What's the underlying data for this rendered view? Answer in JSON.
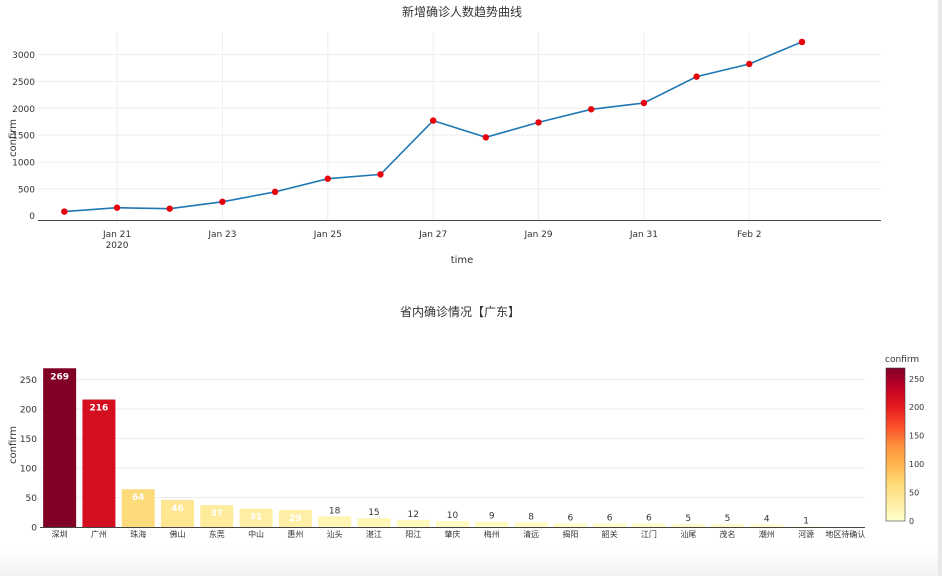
{
  "chart_data": [
    {
      "type": "line",
      "title": "新增确诊人数趋势曲线",
      "xlabel": "time",
      "ylabel": "confirm",
      "x": [
        "2020-01-20",
        "2020-01-21",
        "2020-01-22",
        "2020-01-23",
        "2020-01-24",
        "2020-01-25",
        "2020-01-26",
        "2020-01-27",
        "2020-01-28",
        "2020-01-29",
        "2020-01-30",
        "2020-01-31",
        "2020-02-01",
        "2020-02-02",
        "2020-02-03"
      ],
      "values": [
        77,
        149,
        131,
        259,
        444,
        688,
        769,
        1771,
        1459,
        1737,
        1981,
        2099,
        2589,
        2825,
        3235
      ],
      "xticks": [
        {
          "date": "2020-01-21",
          "label": "Jan 21",
          "sub": "2020"
        },
        {
          "date": "2020-01-23",
          "label": "Jan 23",
          "sub": ""
        },
        {
          "date": "2020-01-25",
          "label": "Jan 25",
          "sub": ""
        },
        {
          "date": "2020-01-27",
          "label": "Jan 27",
          "sub": ""
        },
        {
          "date": "2020-01-29",
          "label": "Jan 29",
          "sub": ""
        },
        {
          "date": "2020-01-31",
          "label": "Jan 31",
          "sub": ""
        },
        {
          "date": "2020-02-02",
          "label": "Feb 2",
          "sub": ""
        }
      ],
      "yticks": [
        0,
        500,
        1000,
        1500,
        2000,
        2500,
        3000
      ],
      "xlim": [
        "2020-01-19T12:00",
        "2020-02-04T12:00"
      ],
      "ylim": [
        -80,
        3420
      ],
      "line_color": "#1f77b4",
      "marker_color": "#e8000b",
      "grid": true
    },
    {
      "type": "bar",
      "title": "省内确诊情况【广东】",
      "xlabel": "city",
      "ylabel": "confirm",
      "categories": [
        "深圳",
        "广州",
        "珠海",
        "佛山",
        "东莞",
        "中山",
        "惠州",
        "汕头",
        "湛江",
        "阳江",
        "肇庆",
        "梅州",
        "清远",
        "揭阳",
        "韶关",
        "江门",
        "汕尾",
        "茂名",
        "潮州",
        "河源",
        "地区待确认"
      ],
      "values": [
        269,
        216,
        64,
        46,
        37,
        31,
        29,
        18,
        15,
        12,
        10,
        9,
        8,
        6,
        6,
        6,
        5,
        5,
        4,
        1,
        0
      ],
      "labels": [
        "269",
        "216",
        "64",
        "46",
        "37",
        "31",
        "29",
        "18",
        "15",
        "12",
        "10",
        "9",
        "8",
        "6",
        "6",
        "6",
        "5",
        "5",
        "4",
        "1",
        ""
      ],
      "yticks": [
        0,
        50,
        100,
        150,
        200,
        250
      ],
      "ylim": [
        0,
        283
      ],
      "grid": true,
      "colorbar": {
        "title": "confirm",
        "ticks": [
          0,
          50,
          100,
          150,
          200,
          250
        ],
        "range": [
          0,
          269
        ],
        "colorscale": [
          "#ffffcc",
          "#ffeda0",
          "#fed976",
          "#feb24c",
          "#fd8d3c",
          "#fc4e2a",
          "#e31a1c",
          "#bd0026",
          "#800026"
        ],
        "scale_name": "YlOrRd"
      }
    }
  ]
}
